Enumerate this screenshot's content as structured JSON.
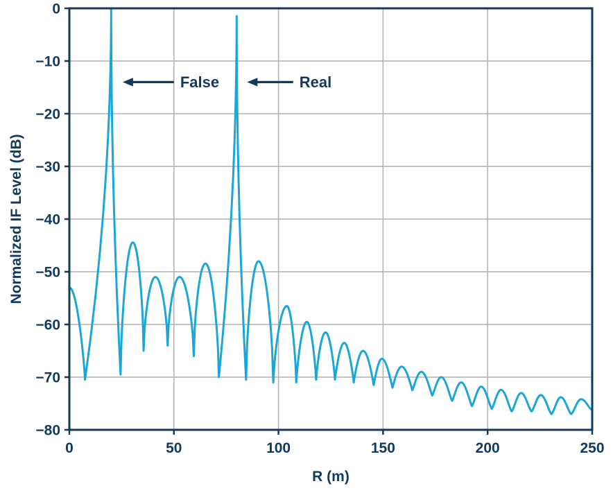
{
  "figure": {
    "background": "#ffffff"
  },
  "chart_data": {
    "type": "line",
    "title": "",
    "xlabel": "R (m)",
    "ylabel": "Normalized IF Level (dB)",
    "xlim": [
      0,
      250
    ],
    "ylim": [
      -80,
      0
    ],
    "x_ticks": [
      0,
      50,
      100,
      150,
      200,
      250
    ],
    "y_ticks": [
      0,
      -10,
      -20,
      -30,
      -40,
      -50,
      -60,
      -70,
      -80
    ],
    "grid": true,
    "legend": false,
    "line_color": "#1aa7d8",
    "axis_color": "#123a5e",
    "grid_color": "#b0b0b0",
    "peaks": [
      {
        "name": "False target peak",
        "R": 20,
        "level_db": 0
      },
      {
        "name": "Real target peak",
        "R": 80,
        "level_db": -1.5
      }
    ],
    "annotations": [
      {
        "label": "False",
        "arrow_to_x": 25.5,
        "arrow_from_x": 50,
        "label_x": 53,
        "y": -14
      },
      {
        "label": "Real",
        "arrow_to_x": 85,
        "arrow_from_x": 107,
        "label_x": 110,
        "y": -14
      }
    ],
    "curve_segments": [
      {
        "kind": "fall",
        "x0": 0,
        "y0": -53,
        "x1": 7.5,
        "y1": -70.5
      },
      {
        "kind": "spike",
        "x0": 7.5,
        "y0": -70.5,
        "xp": 20,
        "yp": 0,
        "x1": 24.5,
        "y1": -69.5
      },
      {
        "kind": "lobe",
        "x0": 24.5,
        "y0": -69.5,
        "xp": 30,
        "yp": -44.5,
        "x1": 35.5,
        "y1": -65,
        "e": 0.6
      },
      {
        "kind": "lobe",
        "x0": 35.5,
        "y0": -65,
        "xp": 41,
        "yp": -51,
        "x1": 47,
        "y1": -64,
        "e": 0.6
      },
      {
        "kind": "lobe",
        "x0": 47,
        "y0": -64,
        "xp": 53,
        "yp": -51,
        "x1": 59.5,
        "y1": -66,
        "e": 0.6
      },
      {
        "kind": "lobe",
        "x0": 59.5,
        "y0": -66,
        "xp": 65.5,
        "yp": -48.5,
        "x1": 71.5,
        "y1": -70,
        "e": 0.6
      },
      {
        "kind": "spike",
        "x0": 71.5,
        "y0": -70,
        "xp": 80,
        "yp": -1.5,
        "x1": 84.5,
        "y1": -70.5
      },
      {
        "kind": "lobe",
        "x0": 84.5,
        "y0": -70.5,
        "xp": 90.5,
        "yp": -48,
        "x1": 97.5,
        "y1": -71,
        "e": 0.6
      },
      {
        "kind": "lobe",
        "x0": 97.5,
        "y0": -71,
        "xp": 104,
        "yp": -56.5,
        "x1": 108.5,
        "y1": -71,
        "e": 0.7
      },
      {
        "kind": "lobe",
        "x0": 108.5,
        "y0": -71,
        "xp": 113.5,
        "yp": -59.5,
        "x1": 118,
        "y1": -70.5,
        "e": 0.8
      },
      {
        "kind": "lobe",
        "x0": 118,
        "y0": -70.5,
        "xp": 122.5,
        "yp": -61.5,
        "x1": 127,
        "y1": -70.5,
        "e": 0.8
      },
      {
        "kind": "lobe",
        "x0": 127,
        "y0": -70.5,
        "xp": 131.5,
        "yp": -63.5,
        "x1": 136,
        "y1": -71,
        "e": 0.9
      },
      {
        "kind": "lobe",
        "x0": 136,
        "y0": -71,
        "xp": 140.5,
        "yp": -65,
        "x1": 145.5,
        "y1": -71.5,
        "e": 0.9
      },
      {
        "kind": "lobe",
        "x0": 145.5,
        "y0": -71.5,
        "xp": 149.5,
        "yp": -66.5,
        "x1": 154.5,
        "y1": -72,
        "e": 1.0
      },
      {
        "kind": "lobe",
        "x0": 154.5,
        "y0": -72,
        "xp": 159,
        "yp": -68,
        "x1": 164,
        "y1": -72.5,
        "e": 1.0
      },
      {
        "kind": "lobe",
        "x0": 164,
        "y0": -72.5,
        "xp": 168.5,
        "yp": -69,
        "x1": 173.5,
        "y1": -73.5,
        "e": 1.1
      },
      {
        "kind": "lobe",
        "x0": 173.5,
        "y0": -73.5,
        "xp": 178,
        "yp": -70,
        "x1": 183,
        "y1": -74.5,
        "e": 1.2
      },
      {
        "kind": "lobe",
        "x0": 183,
        "y0": -74.5,
        "xp": 187.5,
        "yp": -71,
        "x1": 192.5,
        "y1": -75.5,
        "e": 1.2
      },
      {
        "kind": "lobe",
        "x0": 192.5,
        "y0": -75.5,
        "xp": 197,
        "yp": -71.8,
        "x1": 202,
        "y1": -76,
        "e": 1.3
      },
      {
        "kind": "lobe",
        "x0": 202,
        "y0": -76,
        "xp": 206.5,
        "yp": -72.4,
        "x1": 211.5,
        "y1": -76.5,
        "e": 1.3
      },
      {
        "kind": "lobe",
        "x0": 211.5,
        "y0": -76.5,
        "xp": 216,
        "yp": -73,
        "x1": 221,
        "y1": -76.5,
        "e": 1.4
      },
      {
        "kind": "lobe",
        "x0": 221,
        "y0": -76.5,
        "xp": 225.5,
        "yp": -73.4,
        "x1": 230.5,
        "y1": -77,
        "e": 1.4
      },
      {
        "kind": "lobe",
        "x0": 230.5,
        "y0": -77,
        "xp": 235,
        "yp": -73.8,
        "x1": 240,
        "y1": -77,
        "e": 1.5
      },
      {
        "kind": "lobe",
        "x0": 240,
        "y0": -77,
        "xp": 244.5,
        "yp": -74.2,
        "x1": 250,
        "y1": -76.2,
        "e": 1.5
      }
    ]
  }
}
